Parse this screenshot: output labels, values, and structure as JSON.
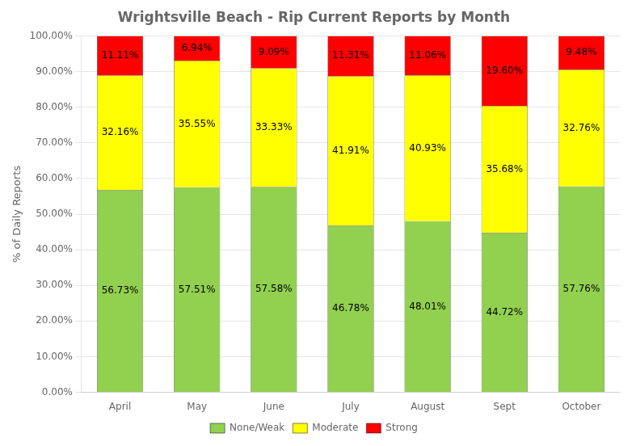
{
  "chart_data": {
    "type": "bar",
    "title": "Wrightsville Beach - Rip Current Reports by Month",
    "ylabel": "% of Daily Reports",
    "categories": [
      "April",
      "May",
      "June",
      "July",
      "August",
      "Sept",
      "October"
    ],
    "stacked": true,
    "data_labels": true,
    "grid": true,
    "legend": "bottom",
    "ylim": [
      0,
      100
    ],
    "yticks": [
      {
        "value": 0,
        "label": "0.00%"
      },
      {
        "value": 10,
        "label": "10.00%"
      },
      {
        "value": 20,
        "label": "20.00%"
      },
      {
        "value": 30,
        "label": "30.00%"
      },
      {
        "value": 40,
        "label": "40.00%"
      },
      {
        "value": 50,
        "label": "50.00%"
      },
      {
        "value": 60,
        "label": "60.00%"
      },
      {
        "value": 70,
        "label": "70.00%"
      },
      {
        "value": 80,
        "label": "80.00%"
      },
      {
        "value": 90,
        "label": "90.00%"
      },
      {
        "value": 100,
        "label": "100.00%"
      }
    ],
    "series": [
      {
        "name": "None/Weak",
        "color": "#92D050",
        "values": [
          56.73,
          57.51,
          57.58,
          46.78,
          48.01,
          44.72,
          57.76
        ],
        "value_labels": [
          "56.73%",
          "57.51%",
          "57.58%",
          "46.78%",
          "48.01%",
          "44.72%",
          "57.76%"
        ]
      },
      {
        "name": "Moderate",
        "color": "#FFFF00",
        "values": [
          32.16,
          35.55,
          33.33,
          41.91,
          40.93,
          35.68,
          32.76
        ],
        "value_labels": [
          "32.16%",
          "35.55%",
          "33.33%",
          "41.91%",
          "40.93%",
          "35.68%",
          "32.76%"
        ]
      },
      {
        "name": "Strong",
        "color": "#FF0000",
        "values": [
          11.11,
          6.94,
          9.09,
          11.31,
          11.06,
          19.6,
          9.48
        ],
        "value_labels": [
          "11.11%",
          "6.94%",
          "9.09%",
          "11.31%",
          "11.06%",
          "19.60%",
          "9.48%"
        ]
      }
    ]
  }
}
